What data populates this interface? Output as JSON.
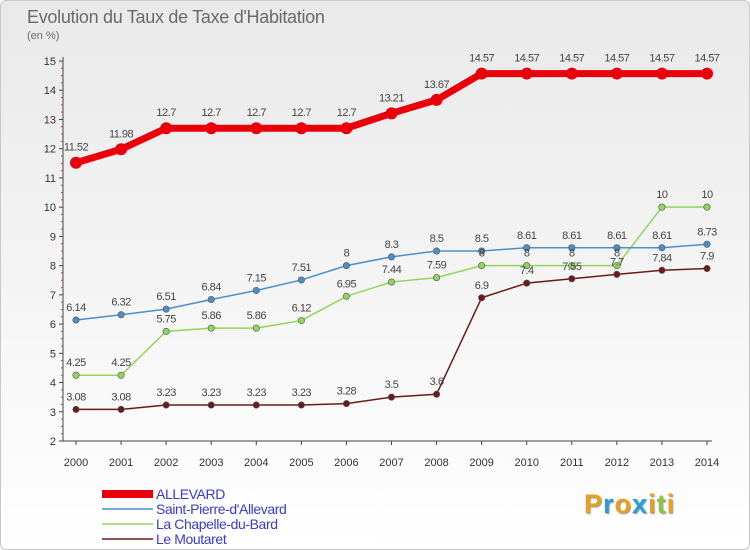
{
  "title": "Evolution du Taux de Taxe d'Habitation",
  "subtitle": "(en %)",
  "logo": {
    "text": "Proxiti",
    "colors": [
      "#e8a020",
      "#2a9fd6",
      "#e8a020",
      "#2a9fd6",
      "#e8a020",
      "#8cc63f",
      "#e8a020"
    ]
  },
  "chart_data": {
    "type": "line",
    "x": [
      2000,
      2001,
      2002,
      2003,
      2004,
      2005,
      2006,
      2007,
      2008,
      2009,
      2010,
      2011,
      2012,
      2013,
      2014
    ],
    "ylim": [
      2,
      15
    ],
    "yticks": [
      2,
      3,
      4,
      5,
      6,
      7,
      8,
      9,
      10,
      11,
      12,
      13,
      14,
      15
    ],
    "grid": false,
    "legend_position": "bottom-left",
    "series": [
      {
        "name": "ALLEVARD",
        "color": "#e8000b",
        "values": [
          11.52,
          11.98,
          12.7,
          12.7,
          12.7,
          12.7,
          12.7,
          13.21,
          13.67,
          14.57,
          14.57,
          14.57,
          14.57,
          14.57,
          14.57
        ],
        "labels": [
          "11.52",
          "11.98",
          "12.7",
          "12.7",
          "12.7",
          "12.7",
          "12.7",
          "13.21",
          "13.67",
          "14.57",
          "14.57",
          "14.57",
          "14.57",
          "14.57",
          "14.57"
        ]
      },
      {
        "name": "Saint-Pierre-d'Allevard",
        "color": "#4a8fc9",
        "values": [
          6.14,
          6.32,
          6.51,
          6.84,
          7.15,
          7.51,
          8,
          8.3,
          8.5,
          8.5,
          8.61,
          8.61,
          8.61,
          8.61,
          8.73
        ],
        "labels": [
          "6.14",
          "6.32",
          "6.51",
          "6.84",
          "7.15",
          "7.51",
          "8",
          "8.3",
          "8.5",
          "8.5",
          "8.61",
          "8.61",
          "8.61",
          "8.61",
          "8.73"
        ]
      },
      {
        "name": "La Chapelle-du-Bard",
        "color": "#8fd65a",
        "values": [
          4.25,
          4.25,
          5.75,
          5.86,
          5.86,
          6.12,
          6.95,
          7.44,
          7.59,
          8,
          8,
          8,
          8,
          10,
          10
        ],
        "labels": [
          "4.25",
          "4.25",
          "5.75",
          "5.86",
          "5.86",
          "6.12",
          "6.95",
          "7.44",
          "7.59",
          "8",
          "8",
          "8",
          "8",
          "10",
          "10"
        ]
      },
      {
        "name": "Le Moutaret",
        "color": "#6b1a1a",
        "values": [
          3.08,
          3.08,
          3.23,
          3.23,
          3.23,
          3.23,
          3.28,
          3.5,
          3.6,
          6.9,
          7.4,
          7.55,
          7.7,
          7.84,
          7.9
        ],
        "labels": [
          "3.08",
          "3.08",
          "3.23",
          "3.23",
          "3.23",
          "3.23",
          "3.28",
          "3.5",
          "3.6",
          "6.9",
          "7.4",
          "7.55",
          "7.7",
          "7.84",
          "7.9"
        ]
      }
    ]
  }
}
